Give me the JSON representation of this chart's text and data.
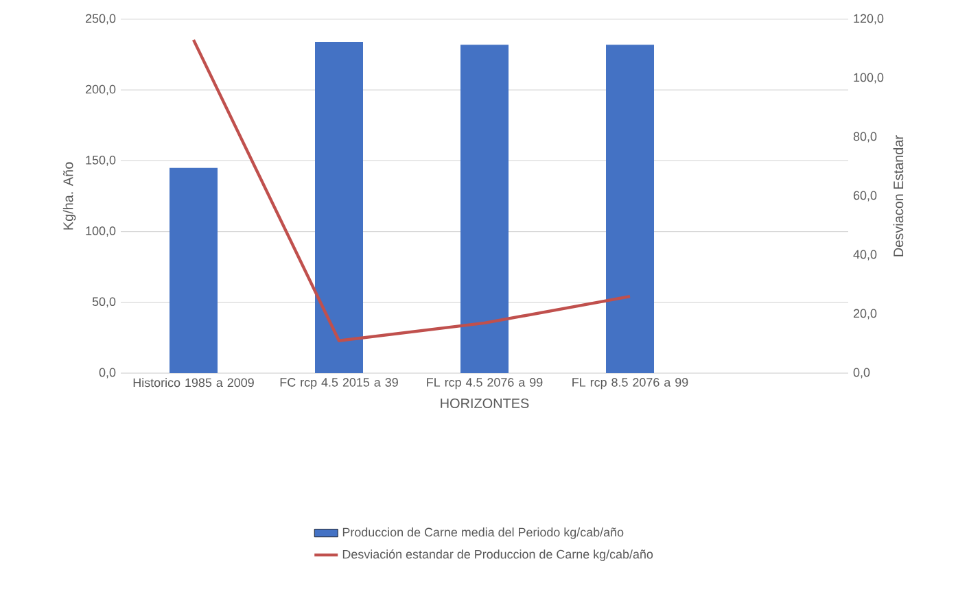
{
  "chart_data": {
    "type": "bar",
    "xlabel": "HORIZONTES",
    "ylabel": "Kg/ha. Año",
    "y2label": "Desviacon Estandar",
    "categories": [
      "Historico 1985 a 2009",
      "FC rcp 4.5 2015 a 39",
      "FL rcp 4.5 2076 a 99",
      "FL rcp 8.5 2076 a 99",
      null
    ],
    "series": [
      {
        "name": "Produccion de Carne media del Periodo kg/cab/año",
        "color": "#4472c4",
        "values": [
          145,
          234,
          232,
          232,
          null
        ]
      },
      {
        "name": "Desviación estandar de Produccion de Carne kg/cab/año",
        "type": "line",
        "axis": "y2",
        "color": "#c0504d",
        "values": [
          113,
          11,
          17,
          26,
          null
        ]
      }
    ],
    "ylim": [
      0,
      250
    ],
    "yticks": [
      {
        "value": 0,
        "label": "0,0"
      },
      {
        "value": 50,
        "label": "50,0"
      },
      {
        "value": 100,
        "label": "100,0"
      },
      {
        "value": 150,
        "label": "150,0"
      },
      {
        "value": 200,
        "label": "200,0"
      },
      {
        "value": 250,
        "label": "250,0"
      }
    ],
    "y2lim": [
      0,
      120
    ],
    "y2ticks": [
      {
        "value": 0,
        "label": "0,0"
      },
      {
        "value": 20,
        "label": "20,0"
      },
      {
        "value": 40,
        "label": "40,0"
      },
      {
        "value": 60,
        "label": "60,0"
      },
      {
        "value": 80,
        "label": "80,0"
      },
      {
        "value": 100,
        "label": "100,0"
      },
      {
        "value": 120,
        "label": "120,0"
      }
    ],
    "grid": "y",
    "legend": "bottom"
  }
}
